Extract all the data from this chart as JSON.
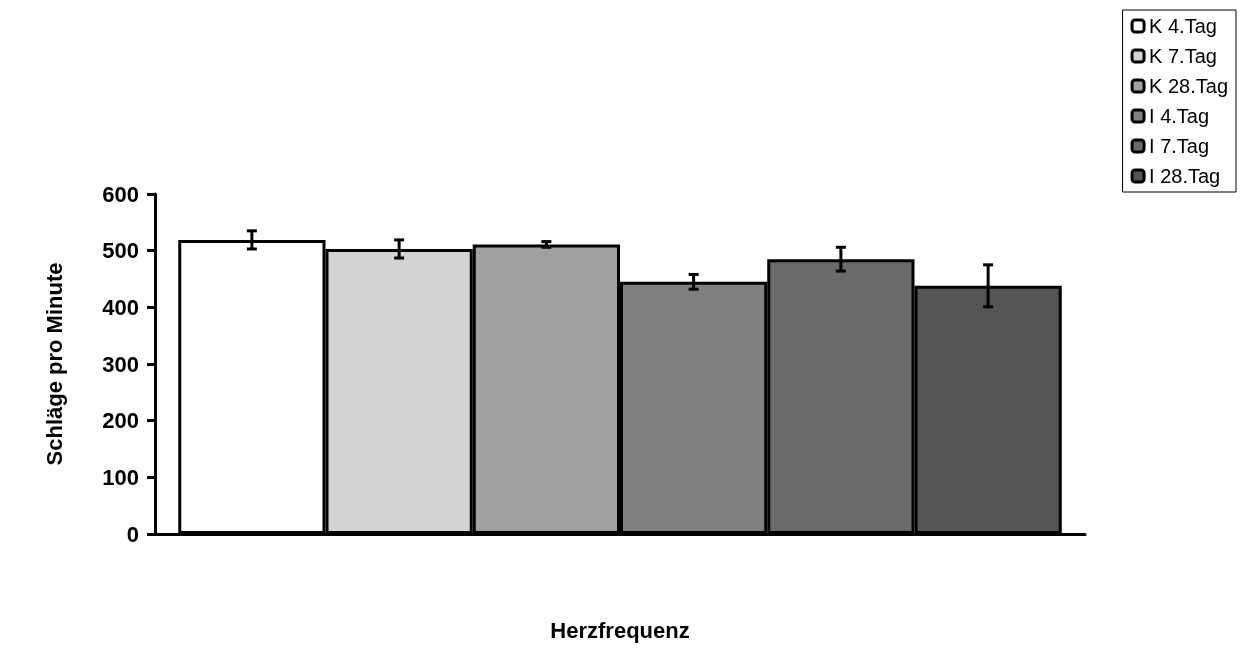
{
  "chart_data": {
    "type": "bar",
    "xlabel": "Herzfrequenz",
    "ylabel": "Schläge pro Minute",
    "categories": [
      null
    ],
    "series": [
      {
        "name": "K 4.Tag",
        "color": "#ffffff",
        "values": [
          519
        ],
        "errors": [
          16
        ]
      },
      {
        "name": "K 7.Tag",
        "color": "#d3d3d3",
        "values": [
          503
        ],
        "errors": [
          16
        ]
      },
      {
        "name": "K 28.Tag",
        "color": "#a0a0a0",
        "values": [
          511
        ],
        "errors": [
          5
        ]
      },
      {
        "name": "I 4.Tag",
        "color": "#808080",
        "values": [
          445
        ],
        "errors": [
          13
        ]
      },
      {
        "name": "I 7.Tag",
        "color": "#6a6a6a",
        "values": [
          485
        ],
        "errors": [
          21
        ]
      },
      {
        "name": "I 28.Tag",
        "color": "#555555",
        "values": [
          438
        ],
        "errors": [
          37
        ]
      }
    ],
    "ylim": [
      0,
      600
    ],
    "yticks": [
      0,
      100,
      200,
      300,
      400,
      500,
      600
    ],
    "grid": false,
    "legend": "top right"
  }
}
